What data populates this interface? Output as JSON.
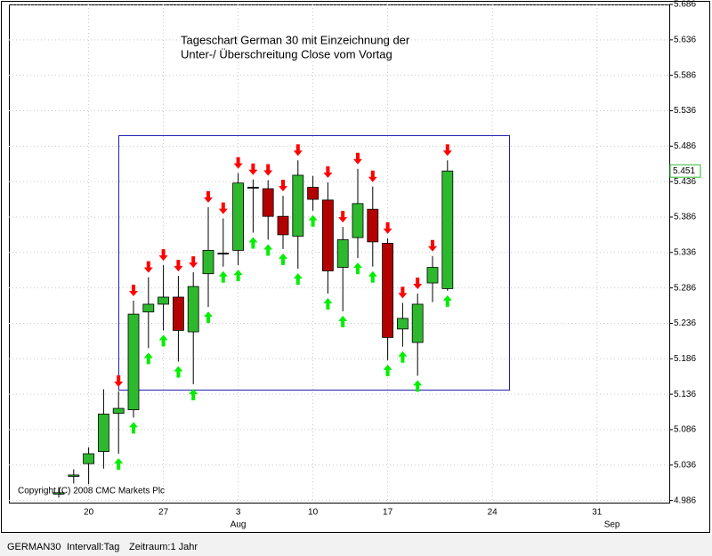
{
  "chart_data": {
    "type": "candlestick",
    "title": [
      "Tageschart German 30 mit Einzeichnung der",
      "Unter-/ Überschreitung Close vom Vortag"
    ],
    "copyright": "Copyright (C) 2008 CMC Markets Plc",
    "categories": [
      null,
      null,
      "20",
      null,
      null,
      null,
      null,
      "27",
      null,
      null,
      null,
      null,
      "3",
      null,
      null,
      null,
      null,
      "10",
      null,
      null,
      null,
      null,
      "17",
      null,
      null,
      null,
      null,
      null,
      null,
      "24",
      null,
      null,
      null,
      null,
      null,
      null,
      "31",
      null,
      null,
      null,
      null
    ],
    "months": [
      null,
      null,
      null,
      null,
      null,
      null,
      null,
      null,
      null,
      null,
      null,
      null,
      "Aug",
      null,
      null,
      null,
      null,
      null,
      null,
      null,
      null,
      null,
      null,
      null,
      null,
      null,
      null,
      null,
      null,
      null,
      null,
      null,
      null,
      null,
      null,
      null,
      null,
      "Sep",
      null,
      null,
      null
    ],
    "open": [
      4.995,
      5.02,
      5.038,
      5.055,
      5.109,
      5.114,
      5.252,
      5.263,
      5.273,
      5.224,
      5.306,
      5.335,
      5.339,
      5.428,
      5.426,
      5.387,
      5.359,
      5.428,
      5.41,
      5.315,
      5.357,
      5.397,
      5.349,
      5.228,
      5.209,
      5.293,
      5.285,
      null,
      null,
      null,
      null,
      null,
      null,
      null,
      null,
      null,
      null,
      null,
      null,
      null,
      null
    ],
    "high": [
      5.005,
      5.03,
      5.061,
      5.143,
      5.14,
      5.268,
      5.301,
      5.318,
      5.303,
      5.308,
      5.4,
      5.384,
      5.448,
      5.439,
      5.438,
      5.416,
      5.466,
      5.444,
      5.435,
      5.372,
      5.454,
      5.429,
      5.356,
      5.265,
      5.278,
      5.331,
      5.466,
      null,
      null,
      null,
      null,
      null,
      null,
      null,
      null,
      null,
      null,
      null,
      null,
      null,
      null
    ],
    "low": [
      4.99,
      5.01,
      5.009,
      5.031,
      5.052,
      5.103,
      5.201,
      5.226,
      5.182,
      5.15,
      5.259,
      5.316,
      5.318,
      5.364,
      5.354,
      5.341,
      5.313,
      5.395,
      5.278,
      5.253,
      5.328,
      5.316,
      5.184,
      5.203,
      5.162,
      5.266,
      5.282,
      null,
      null,
      null,
      null,
      null,
      null,
      null,
      null,
      null,
      null,
      null,
      null,
      null,
      null
    ],
    "close": [
      4.997,
      5.022,
      5.052,
      5.108,
      5.116,
      5.249,
      5.263,
      5.273,
      5.226,
      5.288,
      5.339,
      5.335,
      5.434,
      5.428,
      5.387,
      5.361,
      5.445,
      5.411,
      5.31,
      5.354,
      5.405,
      5.351,
      5.216,
      5.243,
      5.263,
      5.315,
      5.451,
      null,
      null,
      null,
      null,
      null,
      null,
      null,
      null,
      null,
      null,
      null,
      null,
      null,
      null
    ],
    "up_color": "#2eb82e",
    "down_color": "#b30000",
    "doji_color": "#000000",
    "last_price": 5.451,
    "ylim": [
      4.983,
      5.686
    ],
    "yticks": [
      4.986,
      5.036,
      5.086,
      5.136,
      5.186,
      5.236,
      5.286,
      5.336,
      5.386,
      5.436,
      5.486,
      5.536,
      5.586,
      5.636,
      5.686
    ],
    "grid": true
  },
  "status_bar": {
    "symbol": "GERMAN30",
    "interval": "Intervall:Tag",
    "period": "Zeitraum:1 Jahr"
  }
}
